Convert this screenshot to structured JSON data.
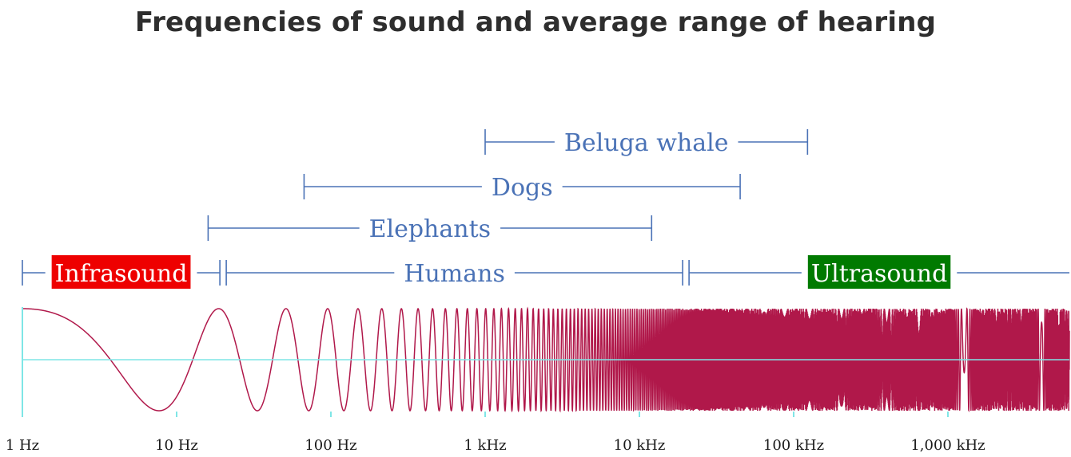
{
  "title": "Frequencies of sound and average range of hearing",
  "ranges": [
    {
      "label": "Beluga whale",
      "from_hz": 1000,
      "to_hz": 123000
    },
    {
      "label": "Dogs",
      "from_hz": 67,
      "to_hz": 45000
    },
    {
      "label": "Elephants",
      "from_hz": 16,
      "to_hz": 12000
    },
    {
      "label": "Humans",
      "from_hz": 20,
      "to_hz": 20000
    }
  ],
  "sound_regions": [
    {
      "label": "Infrasound",
      "from_hz": 1,
      "to_hz": 20,
      "color": "#ee0000"
    },
    {
      "label": "Ultrasound",
      "from_hz": 20000,
      "to_hz": 10000000,
      "color": "#007a00"
    }
  ],
  "axis": {
    "scale": "log",
    "ticks": [
      {
        "hz": 1,
        "label": "1 Hz"
      },
      {
        "hz": 10,
        "label": "10 Hz"
      },
      {
        "hz": 100,
        "label": "100 Hz"
      },
      {
        "hz": 1000,
        "label": "1 kHz"
      },
      {
        "hz": 10000,
        "label": "10 kHz"
      },
      {
        "hz": 100000,
        "label": "100 kHz"
      },
      {
        "hz": 1000000,
        "label": "1,000 kHz"
      }
    ]
  },
  "colors": {
    "range": "#4a72b6",
    "wave": "#b0184a",
    "axis": "#7fe6e6",
    "title": "#2e2e2e"
  }
}
